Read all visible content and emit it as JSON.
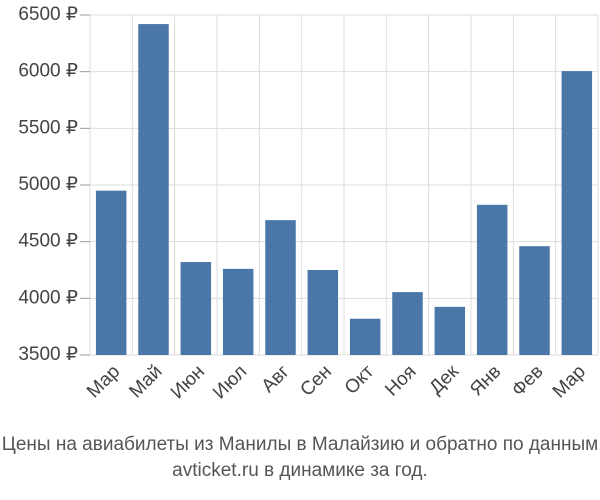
{
  "chart_data": {
    "type": "bar",
    "title": "Цены на авиабилеты из Манилы в Малайзию и обратно по данным avticket.ru в динамике за год.",
    "categories": [
      "Мар",
      "Май",
      "Июн",
      "Июл",
      "Авг",
      "Сен",
      "Окт",
      "Ноя",
      "Дек",
      "Янв",
      "Фев",
      "Мар"
    ],
    "values": [
      4950,
      6420,
      4320,
      4260,
      4690,
      4250,
      3820,
      4055,
      3925,
      4825,
      4460,
      6005
    ],
    "color": "#4a76a8",
    "ylim": [
      3500,
      6500
    ],
    "yticks": [
      {
        "value": 3500,
        "label": "3500 ₽"
      },
      {
        "value": 4000,
        "label": "4000 ₽"
      },
      {
        "value": 4500,
        "label": "4500 ₽"
      },
      {
        "value": 5000,
        "label": "5000 ₽"
      },
      {
        "value": 5500,
        "label": "5500 ₽"
      },
      {
        "value": 6000,
        "label": "6000 ₽"
      },
      {
        "value": 6500,
        "label": "6500 ₽"
      }
    ],
    "grid": true
  }
}
